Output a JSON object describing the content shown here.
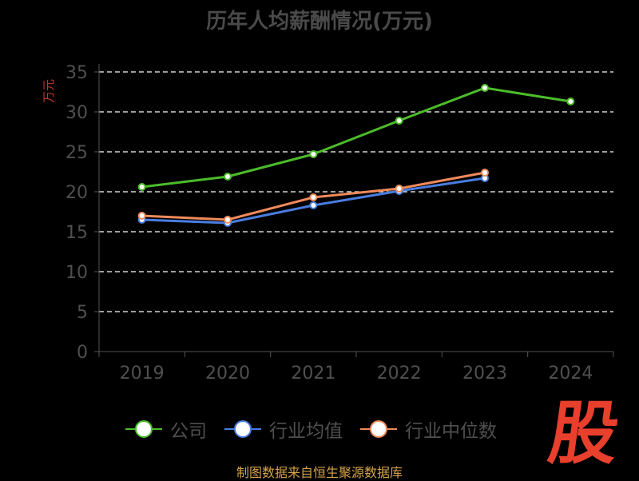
{
  "chart_data": {
    "type": "line",
    "title": "历年人均薪酬情况(万元)",
    "ylabel": "万元",
    "xlabel": "",
    "categories": [
      "2019",
      "2020",
      "2021",
      "2022",
      "2023",
      "2024"
    ],
    "ylim": [
      0,
      35
    ],
    "yticks": [
      0,
      5,
      10,
      15,
      20,
      25,
      30,
      35
    ],
    "grid": true,
    "legend_position": "bottom",
    "series": [
      {
        "name": "公司",
        "color": "#4cbc2a",
        "values": [
          20.6,
          21.9,
          24.7,
          28.9,
          33.0,
          31.3
        ]
      },
      {
        "name": "行业均值",
        "color": "#4a7de0",
        "values": [
          16.5,
          16.1,
          18.3,
          20.1,
          21.7,
          null
        ]
      },
      {
        "name": "行业中位数",
        "color": "#f08a5a",
        "values": [
          17.0,
          16.5,
          19.3,
          20.4,
          22.4,
          null
        ]
      }
    ]
  },
  "source_text": "制图数据来自恒生聚源数据库",
  "logo_text": "股"
}
